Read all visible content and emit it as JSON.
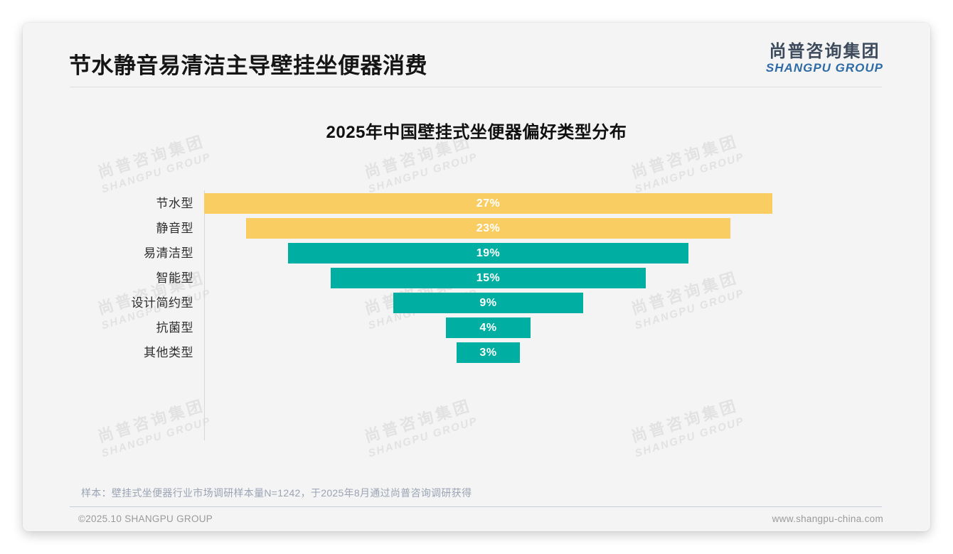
{
  "header": {
    "title": "节水静音易清洁主导壁挂坐便器消费"
  },
  "logo": {
    "cn": "尚普咨询集团",
    "en": "SHANGPU GROUP"
  },
  "watermark": {
    "cn": "尚普咨询集团",
    "en": "SHANGPU GROUP"
  },
  "chart_data": {
    "type": "bar",
    "subtype": "centered-funnel-horizontal",
    "title": "2025年中国壁挂式坐便器偏好类型分布",
    "categories": [
      "节水型",
      "静音型",
      "易清洁型",
      "智能型",
      "设计简约型",
      "抗菌型",
      "其他类型"
    ],
    "values": [
      27,
      23,
      19,
      15,
      9,
      4,
      3
    ],
    "labels": [
      "27%",
      "23%",
      "19%",
      "15%",
      "9%",
      "4%",
      "3%"
    ],
    "bar_colors": [
      "#FACD63",
      "#FACD63",
      "#00AFA1",
      "#00AFA1",
      "#00AFA1",
      "#00AFA1",
      "#00AFA1"
    ],
    "value_label_color": "#FFFFFF",
    "xlim": [
      0,
      27
    ],
    "grid": false,
    "legend": false,
    "axis_line_color": "#D8D8D8"
  },
  "footer": {
    "note": "样本：壁挂式坐便器行业市场调研样本量N=1242，于2025年8月通过尚普咨询调研获得",
    "copyright": "©2025.10 SHANGPU GROUP",
    "website": "www.shangpu-china.com"
  }
}
